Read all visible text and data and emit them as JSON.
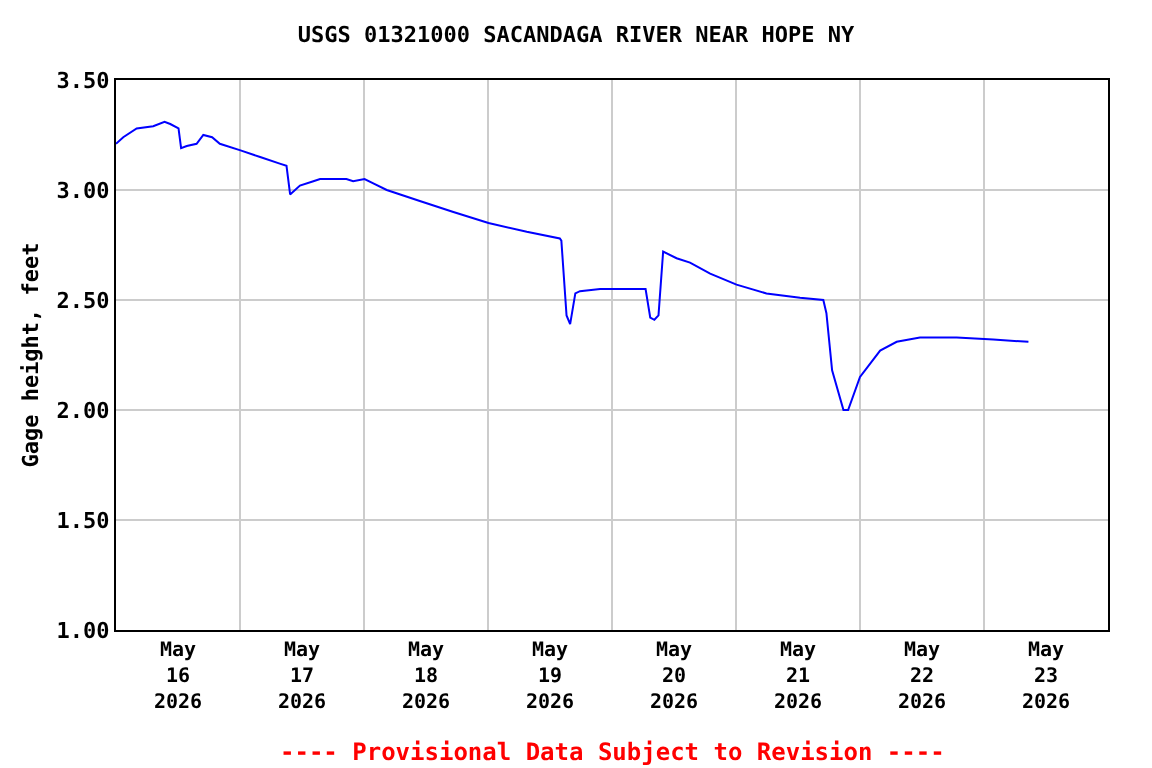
{
  "chart_data": {
    "type": "line",
    "title": "USGS 01321000 SACANDAGA RIVER NEAR HOPE NY",
    "ylabel": "Gage height, feet",
    "annotations": [
      "---- Provisional Data Subject to Revision ----"
    ],
    "x": [
      "2026-05-16T00:00",
      "2026-05-16T01:24",
      "2026-05-16T04:00",
      "2026-05-16T07:12",
      "2026-05-16T09:24",
      "2026-05-16T10:30",
      "2026-05-16T12:06",
      "2026-05-16T12:36",
      "2026-05-16T13:42",
      "2026-05-16T15:36",
      "2026-05-16T16:54",
      "2026-05-16T18:36",
      "2026-05-16T20:06",
      "2026-05-17T00:06",
      "2026-05-17T03:54",
      "2026-05-17T07:42",
      "2026-05-17T09:00",
      "2026-05-17T09:42",
      "2026-05-17T11:36",
      "2026-05-17T14:12",
      "2026-05-17T15:30",
      "2026-05-17T20:36",
      "2026-05-17T21:54",
      "2026-05-18T00:06",
      "2026-05-18T01:48",
      "2026-05-18T04:24",
      "2026-05-18T10:48",
      "2026-05-18T17:18",
      "2026-05-19T00:06",
      "2026-05-19T07:30",
      "2026-05-19T13:54",
      "2026-05-19T14:12",
      "2026-05-19T15:12",
      "2026-05-19T15:54",
      "2026-05-19T16:54",
      "2026-05-19T17:48",
      "2026-05-19T21:42",
      "2026-05-20T06:30",
      "2026-05-20T07:24",
      "2026-05-20T08:12",
      "2026-05-20T09:00",
      "2026-05-20T09:54",
      "2026-05-20T12:30",
      "2026-05-20T15:06",
      "2026-05-20T19:00",
      "2026-05-21T00:06",
      "2026-05-21T05:54",
      "2026-05-21T12:24",
      "2026-05-21T16:54",
      "2026-05-21T17:30",
      "2026-05-21T18:36",
      "2026-05-21T20:48",
      "2026-05-21T21:42",
      "2026-05-22T00:00",
      "2026-05-22T03:54",
      "2026-05-22T07:06",
      "2026-05-22T11:36",
      "2026-05-22T18:42",
      "2026-05-23T01:48",
      "2026-05-23T08:36"
    ],
    "series": [
      {
        "color": "#0000ff",
        "values": [
          3.21,
          3.24,
          3.28,
          3.29,
          3.31,
          3.3,
          3.28,
          3.19,
          3.2,
          3.21,
          3.25,
          3.24,
          3.21,
          3.18,
          3.15,
          3.12,
          3.11,
          2.98,
          3.02,
          3.04,
          3.05,
          3.05,
          3.04,
          3.05,
          3.03,
          3.0,
          2.95,
          2.9,
          2.85,
          2.81,
          2.78,
          2.77,
          2.43,
          2.39,
          2.53,
          2.54,
          2.55,
          2.55,
          2.42,
          2.41,
          2.43,
          2.72,
          2.69,
          2.67,
          2.62,
          2.57,
          2.53,
          2.51,
          2.5,
          2.44,
          2.18,
          2.0,
          2.0,
          2.15,
          2.27,
          2.31,
          2.33,
          2.33,
          2.32,
          2.31
        ]
      }
    ],
    "xlim": [
      "2026-05-16T00:00",
      "2026-05-24T00:00"
    ],
    "xticks": [
      {
        "value": "2026-05-16T12:00",
        "label": "May\n16\n2026"
      },
      {
        "value": "2026-05-17T00:00",
        "label": null
      },
      {
        "value": "2026-05-17T12:00",
        "label": "May\n17\n2026"
      },
      {
        "value": "2026-05-18T00:00",
        "label": null
      },
      {
        "value": "2026-05-18T12:00",
        "label": "May\n18\n2026"
      },
      {
        "value": "2026-05-19T00:00",
        "label": null
      },
      {
        "value": "2026-05-19T12:00",
        "label": "May\n19\n2026"
      },
      {
        "value": "2026-05-20T00:00",
        "label": null
      },
      {
        "value": "2026-05-20T12:00",
        "label": "May\n20\n2026"
      },
      {
        "value": "2026-05-21T00:00",
        "label": null
      },
      {
        "value": "2026-05-21T12:00",
        "label": "May\n21\n2026"
      },
      {
        "value": "2026-05-22T00:00",
        "label": null
      },
      {
        "value": "2026-05-22T12:00",
        "label": "May\n22\n2026"
      },
      {
        "value": "2026-05-23T00:00",
        "label": null
      },
      {
        "value": "2026-05-23T12:00",
        "label": "May\n23\n2026"
      }
    ],
    "ylim": [
      1.0,
      3.5
    ],
    "yticks": [
      {
        "value": 1.0,
        "label": "1.00"
      },
      {
        "value": 1.5,
        "label": "1.50"
      },
      {
        "value": 2.0,
        "label": "2.00"
      },
      {
        "value": 2.5,
        "label": "2.50"
      },
      {
        "value": 3.0,
        "label": "3.00"
      },
      {
        "value": 3.5,
        "label": "3.50"
      }
    ],
    "grid": true,
    "marker": "none",
    "line_style": "solid"
  }
}
